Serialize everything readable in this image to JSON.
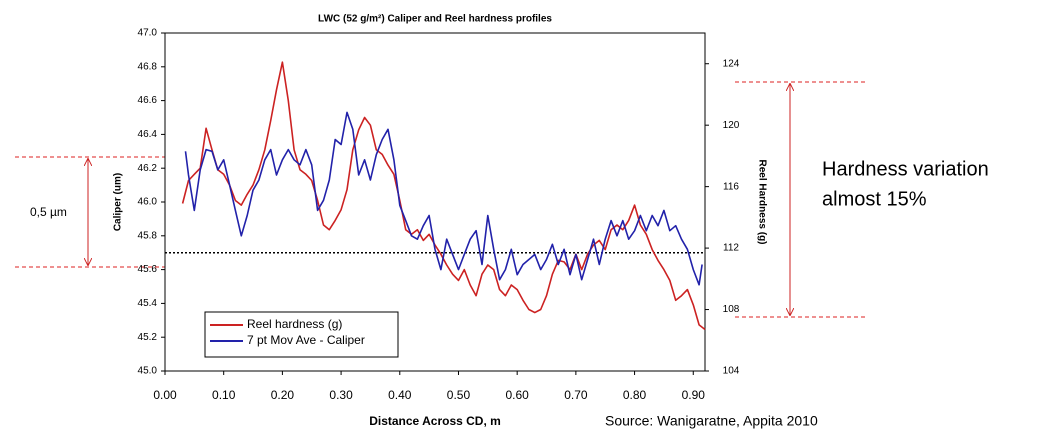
{
  "chart_data": {
    "type": "line",
    "title": "LWC (52 g/m²) Caliper and Reel hardness profiles",
    "xlabel": "Distance Across CD, m",
    "ylabel": "Caliper (um)",
    "y2label": "Reel Hardness (g)",
    "xlim": [
      0,
      0.92
    ],
    "xticks": [
      {
        "value": 0,
        "label": "0.00"
      },
      {
        "value": 0.1,
        "label": "0.10"
      },
      {
        "value": 0.2,
        "label": "0.20"
      },
      {
        "value": 0.3,
        "label": "0.30"
      },
      {
        "value": 0.4,
        "label": "0.40"
      },
      {
        "value": 0.5,
        "label": "0.50"
      },
      {
        "value": 0.6,
        "label": "0.60"
      },
      {
        "value": 0.7,
        "label": "0.70"
      },
      {
        "value": 0.8,
        "label": "0.80"
      },
      {
        "value": 0.9,
        "label": "0.90"
      }
    ],
    "ylim": [
      45,
      47
    ],
    "yticks": [
      {
        "value": 45,
        "label": "45.0"
      },
      45.2,
      45.4,
      45.6,
      45.8,
      {
        "value": 46,
        "label": "46.0"
      },
      46.2,
      46.4,
      46.6,
      46.8,
      {
        "value": 47,
        "label": "47.0"
      }
    ],
    "y2lim": [
      104,
      126
    ],
    "y2ticks": [
      104,
      108,
      112,
      116,
      120,
      124
    ],
    "hline": 45.7,
    "legend": "lower left",
    "series": [
      {
        "name": "Reel hardness (g)",
        "color": "#cc2222",
        "axis": "y2",
        "x": [
          0.03,
          0.04,
          0.05,
          0.06,
          0.07,
          0.08,
          0.09,
          0.1,
          0.11,
          0.12,
          0.13,
          0.14,
          0.15,
          0.16,
          0.17,
          0.18,
          0.19,
          0.2,
          0.21,
          0.22,
          0.23,
          0.24,
          0.25,
          0.26,
          0.27,
          0.28,
          0.29,
          0.3,
          0.31,
          0.32,
          0.33,
          0.34,
          0.35,
          0.36,
          0.37,
          0.38,
          0.39,
          0.4,
          0.41,
          0.42,
          0.43,
          0.44,
          0.45,
          0.46,
          0.47,
          0.48,
          0.49,
          0.5,
          0.51,
          0.52,
          0.53,
          0.54,
          0.55,
          0.56,
          0.57,
          0.58,
          0.59,
          0.6,
          0.61,
          0.62,
          0.63,
          0.64,
          0.65,
          0.66,
          0.67,
          0.68,
          0.69,
          0.7,
          0.71,
          0.72,
          0.73,
          0.74,
          0.75,
          0.76,
          0.77,
          0.78,
          0.79,
          0.8,
          0.81,
          0.82,
          0.83,
          0.84,
          0.85,
          0.86,
          0.87,
          0.88,
          0.89,
          0.9,
          0.91,
          0.92
        ],
        "values": [
          114.9,
          116.4,
          116.8,
          117.2,
          119.8,
          118.4,
          117.1,
          116.8,
          116.1,
          115.1,
          114.8,
          115.5,
          116.1,
          117.1,
          118.4,
          120.3,
          122.3,
          124.1,
          121.6,
          118.4,
          117.1,
          116.8,
          116.4,
          115.1,
          113.5,
          113.2,
          113.8,
          114.5,
          115.8,
          118.4,
          119.7,
          120.5,
          120.0,
          118.4,
          118.1,
          117.4,
          116.8,
          115.1,
          113.2,
          112.9,
          113.2,
          112.5,
          112.9,
          112.2,
          111.6,
          110.9,
          110.3,
          109.9,
          110.6,
          109.6,
          108.9,
          110.3,
          110.9,
          110.6,
          109.3,
          108.9,
          109.6,
          109.3,
          108.6,
          108.0,
          107.8,
          108.0,
          108.9,
          110.3,
          111.2,
          111.1,
          110.6,
          111.6,
          110.6,
          111.6,
          112.2,
          112.5,
          111.9,
          113.2,
          113.5,
          113.2,
          113.8,
          114.8,
          113.5,
          112.9,
          111.9,
          111.2,
          110.6,
          109.9,
          108.6,
          108.9,
          109.3,
          108.3,
          107.0,
          106.7
        ]
      },
      {
        "name": "7 pt Mov Ave - Caliper",
        "color": "#2222aa",
        "x": [
          0.035,
          0.04,
          0.05,
          0.06,
          0.07,
          0.08,
          0.09,
          0.1,
          0.11,
          0.12,
          0.13,
          0.14,
          0.15,
          0.16,
          0.17,
          0.18,
          0.19,
          0.2,
          0.21,
          0.22,
          0.23,
          0.24,
          0.25,
          0.26,
          0.27,
          0.28,
          0.29,
          0.3,
          0.31,
          0.32,
          0.33,
          0.34,
          0.35,
          0.36,
          0.37,
          0.38,
          0.39,
          0.4,
          0.41,
          0.42,
          0.43,
          0.44,
          0.45,
          0.46,
          0.47,
          0.48,
          0.49,
          0.5,
          0.51,
          0.52,
          0.53,
          0.54,
          0.55,
          0.56,
          0.57,
          0.58,
          0.59,
          0.6,
          0.61,
          0.62,
          0.63,
          0.64,
          0.65,
          0.66,
          0.67,
          0.68,
          0.69,
          0.7,
          0.71,
          0.72,
          0.73,
          0.74,
          0.75,
          0.76,
          0.77,
          0.78,
          0.79,
          0.8,
          0.81,
          0.82,
          0.83,
          0.84,
          0.85,
          0.86,
          0.87,
          0.88,
          0.89,
          0.9,
          0.91,
          0.915
        ],
        "values": [
          46.3,
          46.16,
          45.95,
          46.19,
          46.31,
          46.3,
          46.19,
          46.25,
          46.1,
          45.95,
          45.8,
          45.92,
          46.07,
          46.13,
          46.25,
          46.31,
          46.16,
          46.25,
          46.31,
          46.25,
          46.22,
          46.31,
          46.22,
          45.95,
          46.01,
          46.13,
          46.37,
          46.34,
          46.53,
          46.43,
          46.16,
          46.25,
          46.13,
          46.28,
          46.37,
          46.43,
          46.25,
          45.98,
          45.89,
          45.8,
          45.78,
          45.86,
          45.92,
          45.72,
          45.6,
          45.78,
          45.69,
          45.6,
          45.69,
          45.78,
          45.83,
          45.63,
          45.92,
          45.72,
          45.54,
          45.6,
          45.72,
          45.57,
          45.63,
          45.66,
          45.69,
          45.6,
          45.66,
          45.75,
          45.63,
          45.72,
          45.57,
          45.69,
          45.54,
          45.66,
          45.78,
          45.63,
          45.78,
          45.89,
          45.8,
          45.89,
          45.78,
          45.83,
          45.92,
          45.83,
          45.92,
          45.86,
          45.95,
          45.83,
          45.86,
          45.78,
          45.72,
          45.6,
          45.51,
          45.63
        ]
      }
    ],
    "annotations": [
      "0,5 µm",
      "Hardness variation",
      "almost 15%",
      "Source: Wanigaratne, Appita 2010"
    ]
  }
}
